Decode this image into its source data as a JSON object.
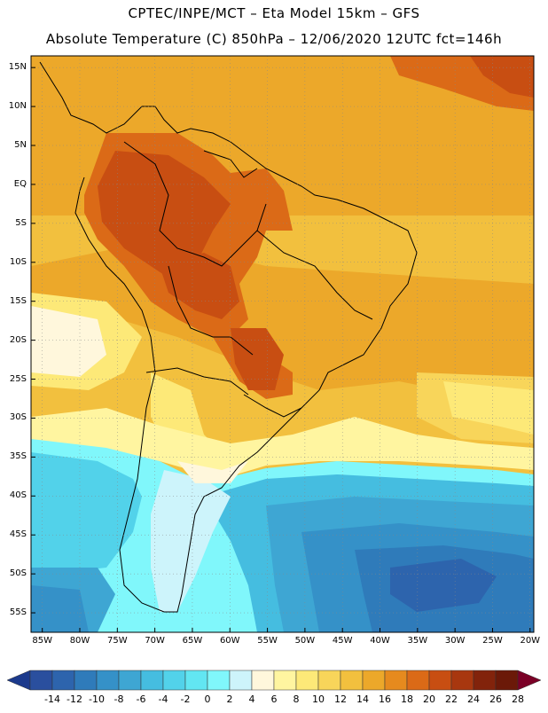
{
  "header": {
    "line1": "CPTEC/INPE/MCT –  Eta Model 15km – GFS",
    "line2": "Absolute Temperature (C) 850hPa – 12/06/2020 12UTC fct=146h"
  },
  "map": {
    "lat_labels": [
      "15N",
      "10N",
      "5N",
      "EQ",
      "5S",
      "10S",
      "15S",
      "20S",
      "25S",
      "30S",
      "35S",
      "40S",
      "45S",
      "50S",
      "55S"
    ],
    "lon_labels": [
      "85W",
      "80W",
      "75W",
      "70W",
      "65W",
      "60W",
      "55W",
      "50W",
      "45W",
      "40W",
      "35W",
      "30W",
      "25W",
      "20W"
    ],
    "extent": {
      "lon_min": -86.5,
      "lon_max": -19.5,
      "lat_min": -57.5,
      "lat_max": 16.5
    }
  },
  "colorbar": {
    "labels": [
      "-14",
      "-12",
      "-10",
      "-8",
      "-6",
      "-4",
      "-2",
      "0",
      "2",
      "4",
      "6",
      "8",
      "10",
      "12",
      "14",
      "16",
      "18",
      "20",
      "22",
      "24",
      "26",
      "28"
    ],
    "colors": [
      "#1c3a8c",
      "#2a4f9e",
      "#2d64ad",
      "#2f7bba",
      "#3591c8",
      "#3ea6d3",
      "#45bde0",
      "#52d2ea",
      "#62e6f2",
      "#80f7fb",
      "#cdf4fb",
      "#fff7dc",
      "#fff5a0",
      "#fde978",
      "#f8d55a",
      "#f2c03e",
      "#eca82a",
      "#e68a1e",
      "#db6a17",
      "#c84e12",
      "#a8370f",
      "#82230b",
      "#6b1908",
      "#7a0026"
    ]
  }
}
